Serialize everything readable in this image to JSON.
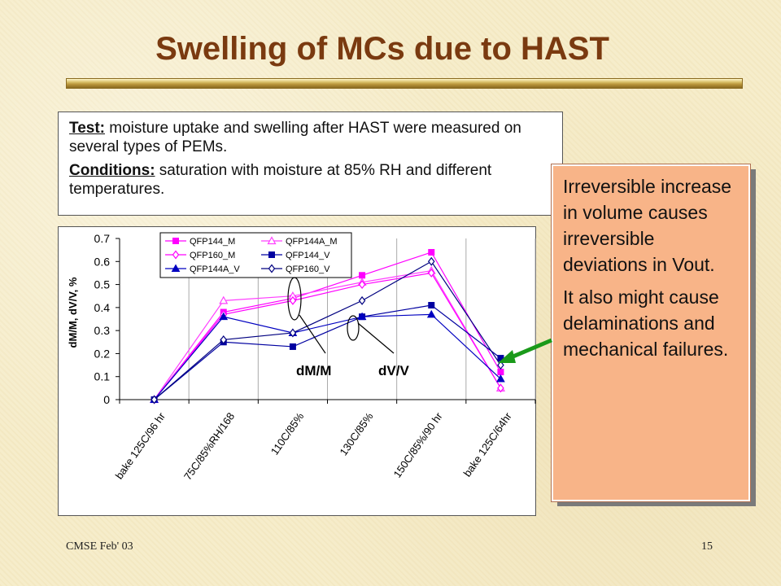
{
  "slide": {
    "title": "Swelling of MCs due to HAST",
    "footer_left": "CMSE Feb' 03",
    "footer_right": "15"
  },
  "description_box": {
    "line1_label": "Test:",
    "line1_text": " moisture uptake and swelling after HAST were measured on several types of PEMs.",
    "line2_label": "Conditions:",
    "line2_text": " saturation with moisture at 85% RH and different temperatures."
  },
  "callout": {
    "para1": "Irreversible increase in volume causes irreversible deviations in Vout.",
    "para2": "It also might cause delaminations and mechanical failures."
  },
  "colors": {
    "title": "#7a3a10",
    "callout_bg": "#f8b488",
    "arrow": "#1a9a1a",
    "magenta": "#ff00ff",
    "navy": "#0000a0"
  },
  "chart_data": {
    "type": "line",
    "categories": [
      "bake 125C/96 hr",
      "75C/85%RH/168",
      "110C/85%",
      "130C/85%",
      "150C/85%/90 hr",
      "bake 125C/64hr"
    ],
    "ylabel": "dM/M, dV/V, %",
    "ylim": [
      0,
      0.7
    ],
    "yticks": [
      "0",
      "0.1",
      "0.2",
      "0.3",
      "0.4",
      "0.5",
      "0.6",
      "0.7"
    ],
    "legend_placement": "top",
    "grid": "vertical",
    "series": [
      {
        "name": "QFP144_M",
        "marker": "square-filled",
        "color": "#ff00ff",
        "values": [
          0,
          0.38,
          0.44,
          0.54,
          0.64,
          0.12
        ]
      },
      {
        "name": "QFP144A_M",
        "marker": "triangle-open",
        "color": "#ff40ff",
        "values": [
          0,
          0.43,
          0.45,
          0.51,
          0.56,
          0.05
        ]
      },
      {
        "name": "QFP160_M",
        "marker": "diamond-open",
        "color": "#ff00ff",
        "values": [
          0,
          0.37,
          0.43,
          0.5,
          0.55,
          0.05
        ]
      },
      {
        "name": "QFP144_V",
        "marker": "square-filled",
        "color": "#0000a0",
        "values": [
          0,
          0.25,
          0.23,
          0.36,
          0.41,
          0.18
        ]
      },
      {
        "name": "QFP144A_V",
        "marker": "triangle-filled",
        "color": "#0000c0",
        "values": [
          0,
          0.36,
          0.29,
          0.36,
          0.37,
          0.09
        ]
      },
      {
        "name": "QFP160_V",
        "marker": "diamond-open",
        "color": "#000080",
        "values": [
          0,
          0.26,
          0.29,
          0.43,
          0.6,
          0.15
        ]
      }
    ],
    "annotations": [
      "dM/M",
      "dV/V"
    ]
  }
}
